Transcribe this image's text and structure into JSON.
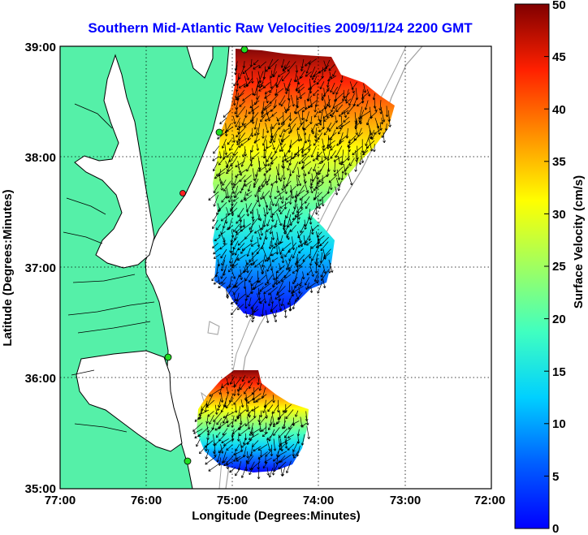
{
  "title": "Southern Mid-Atlantic Raw Velocities 2009/11/24 2200 GMT",
  "x_axis": {
    "label": "Longitude (Degrees:Minutes)",
    "ticks": [
      "77:00",
      "76:00",
      "75:00",
      "74:00",
      "73:00",
      "72:00"
    ]
  },
  "y_axis": {
    "label": "Latitude (Degrees:Minutes)",
    "ticks": [
      "39:00",
      "38:00",
      "37:00",
      "36:00",
      "35:00"
    ]
  },
  "colorbar": {
    "label": "Surface Velocity (cm/s)",
    "ticks": [
      "50",
      "45",
      "40",
      "35",
      "30",
      "25",
      "20",
      "15",
      "10",
      "5",
      "0"
    ],
    "range": [
      0,
      50
    ],
    "colormap": "jet"
  },
  "colors": {
    "title": "#0000ff",
    "land": "#55f0a8",
    "coastline": "#000000",
    "bathymetry": "#a0a0a0",
    "station_marker": "#22dd22",
    "station_marker_active": "#ff2222"
  },
  "map_extent": {
    "lon_min": -77.0,
    "lon_max": -72.0,
    "lat_min": 35.0,
    "lat_max": 39.0
  },
  "grid": "dotted"
}
